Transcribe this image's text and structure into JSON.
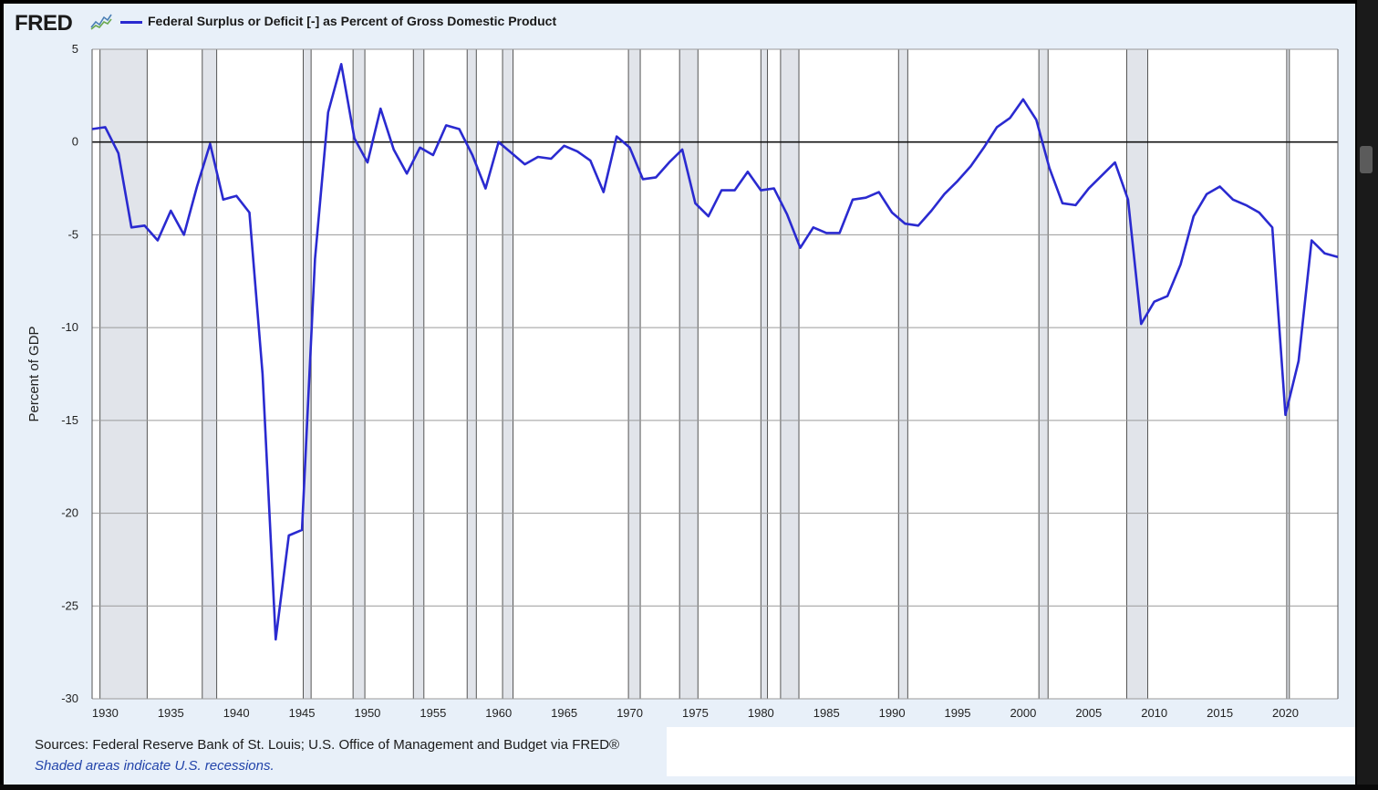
{
  "header": {
    "logo_text": "FRED",
    "legend_label": "Federal Surplus or Deficit [-] as Percent of Gross Domestic Product"
  },
  "footer": {
    "sources": "Sources: Federal Reserve Bank of St. Louis; U.S. Office of Management and Budget via FRED®",
    "note": "Shaded areas indicate U.S. recessions."
  },
  "colors": {
    "series": "#2a2ad0",
    "recession": "#e1e4ea",
    "background": "#e8f0f9",
    "plot": "#ffffff"
  },
  "chart_data": {
    "type": "line",
    "title": "",
    "ylabel": "Percent of GDP",
    "xlabel": "",
    "xlim": [
      1929,
      2024
    ],
    "ylim": [
      -30,
      5
    ],
    "yticks": [
      5,
      0,
      -5,
      -10,
      -15,
      -20,
      -25,
      -30
    ],
    "xticks": [
      1930,
      1935,
      1940,
      1945,
      1950,
      1955,
      1960,
      1965,
      1970,
      1975,
      1980,
      1985,
      1990,
      1995,
      2000,
      2005,
      2010,
      2015,
      2020
    ],
    "grid": true,
    "recessions": [
      [
        1929.6,
        1933.2
      ],
      [
        1937.4,
        1938.5
      ],
      [
        1945.1,
        1945.7
      ],
      [
        1948.9,
        1949.8
      ],
      [
        1953.5,
        1954.3
      ],
      [
        1957.6,
        1958.3
      ],
      [
        1960.3,
        1961.1
      ],
      [
        1969.9,
        1970.8
      ],
      [
        1973.8,
        1975.2
      ],
      [
        1980.0,
        1980.5
      ],
      [
        1981.5,
        1982.9
      ],
      [
        1990.5,
        1991.2
      ],
      [
        2001.2,
        2001.9
      ],
      [
        2007.9,
        2009.5
      ],
      [
        2020.1,
        2020.3
      ]
    ],
    "series": [
      {
        "x": [
          1929,
          1930,
          1931,
          1932,
          1933,
          1934,
          1935,
          1936,
          1937,
          1938,
          1939,
          1940,
          1941,
          1942,
          1943,
          1944,
          1945,
          1946,
          1947,
          1948,
          1949,
          1950,
          1951,
          1952,
          1953,
          1954,
          1955,
          1956,
          1957,
          1958,
          1959,
          1960,
          1961,
          1962,
          1963,
          1964,
          1965,
          1966,
          1967,
          1968,
          1969,
          1970,
          1971,
          1972,
          1973,
          1974,
          1975,
          1976,
          1977,
          1978,
          1979,
          1980,
          1981,
          1982,
          1983,
          1984,
          1985,
          1986,
          1987,
          1988,
          1989,
          1990,
          1991,
          1992,
          1993,
          1994,
          1995,
          1996,
          1997,
          1998,
          1999,
          2000,
          2001,
          2002,
          2003,
          2004,
          2005,
          2006,
          2007,
          2008,
          2009,
          2010,
          2011,
          2012,
          2013,
          2014,
          2015,
          2016,
          2017,
          2018,
          2019,
          2020,
          2021,
          2022,
          2023,
          2024
        ],
        "y": [
          0.7,
          0.8,
          -0.6,
          -4.6,
          -4.5,
          -5.3,
          -3.7,
          -5.0,
          -2.4,
          -0.1,
          -3.1,
          -2.9,
          -3.8,
          -12.5,
          -26.8,
          -21.2,
          -20.9,
          -6.3,
          1.6,
          4.2,
          0.2,
          -1.1,
          1.8,
          -0.4,
          -1.7,
          -0.3,
          -0.7,
          0.9,
          0.7,
          -0.7,
          -2.5,
          0.0,
          -0.6,
          -1.2,
          -0.8,
          -0.9,
          -0.2,
          -0.5,
          -1.0,
          -2.7,
          0.3,
          -0.3,
          -2.0,
          -1.9,
          -1.1,
          -0.4,
          -3.3,
          -4.0,
          -2.6,
          -2.6,
          -1.6,
          -2.6,
          -2.5,
          -3.9,
          -5.7,
          -4.6,
          -4.9,
          -4.9,
          -3.1,
          -3.0,
          -2.7,
          -3.8,
          -4.4,
          -4.5,
          -3.7,
          -2.8,
          -2.1,
          -1.3,
          -0.3,
          0.8,
          1.3,
          2.3,
          1.2,
          -1.4,
          -3.3,
          -3.4,
          -2.5,
          -1.8,
          -1.1,
          -3.1,
          -9.8,
          -8.6,
          -8.3,
          -6.6,
          -4.0,
          -2.8,
          -2.4,
          -3.1,
          -3.4,
          -3.8,
          -4.6,
          -14.7,
          -11.8,
          -5.3,
          -6.0,
          -6.2
        ]
      }
    ]
  }
}
